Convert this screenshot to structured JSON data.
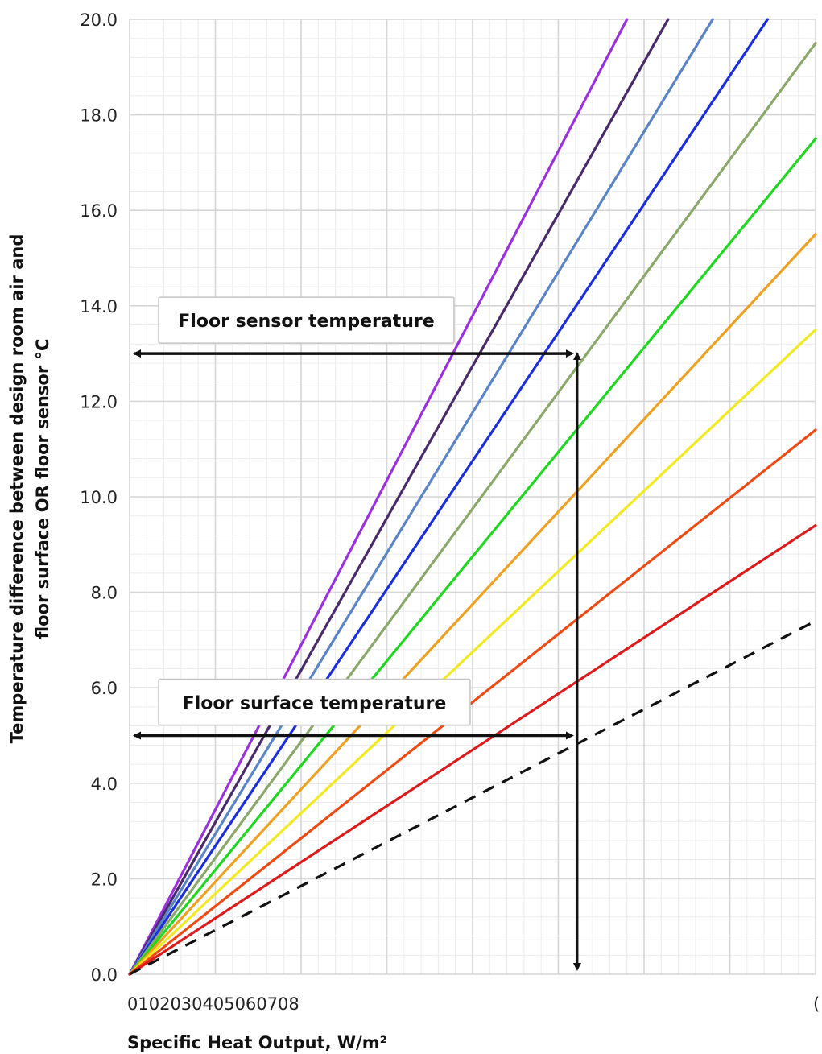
{
  "chart_data": {
    "type": "line",
    "title": "",
    "xlabel": "Specific Heat Output, W/m²",
    "ylabel_lines": [
      "Temperature difference between design room air and",
      "floor surface OR floor sensor °C"
    ],
    "xlim": [
      0,
      80
    ],
    "ylim": [
      0,
      20
    ],
    "x_tick_label_text": "0102030405060708",
    "x_tick_label_right": "(",
    "y_ticks": [
      "0.0",
      "2.0",
      "4.0",
      "6.0",
      "8.0",
      "10.0",
      "12.0",
      "14.0",
      "16.0",
      "18.0",
      "20.0"
    ],
    "grid": true,
    "series": [
      {
        "color": "#9b30e0",
        "x": [
          0,
          58.0
        ],
        "y": [
          0,
          20
        ]
      },
      {
        "color": "#4a2a6a",
        "x": [
          0,
          62.8
        ],
        "y": [
          0,
          20
        ]
      },
      {
        "color": "#5a84c8",
        "x": [
          0,
          68.0
        ],
        "y": [
          0,
          20
        ]
      },
      {
        "color": "#1a2ee0",
        "x": [
          0,
          74.4
        ],
        "y": [
          0,
          20
        ]
      },
      {
        "color": "#8aa86a",
        "x": [
          0,
          80
        ],
        "y": [
          0,
          19.5
        ]
      },
      {
        "color": "#1ed81e",
        "x": [
          0,
          80
        ],
        "y": [
          0,
          17.5
        ]
      },
      {
        "color": "#f0a020",
        "x": [
          0,
          80
        ],
        "y": [
          0,
          15.5
        ]
      },
      {
        "color": "#f2ea20",
        "x": [
          0,
          80
        ],
        "y": [
          0,
          13.5
        ]
      },
      {
        "color": "#ee4a14",
        "x": [
          0,
          80
        ],
        "y": [
          0,
          11.4
        ]
      },
      {
        "color": "#dc1c1c",
        "x": [
          0,
          80
        ],
        "y": [
          0,
          9.4
        ]
      },
      {
        "color": "#111111",
        "dashed": true,
        "x": [
          0,
          80
        ],
        "y": [
          0,
          7.4
        ]
      }
    ],
    "annotations": [
      {
        "text": "Floor sensor temperature",
        "y": 13.0
      },
      {
        "text": "Floor surface temperature",
        "y": 5.0
      }
    ],
    "reading_line_x": 52.2
  }
}
